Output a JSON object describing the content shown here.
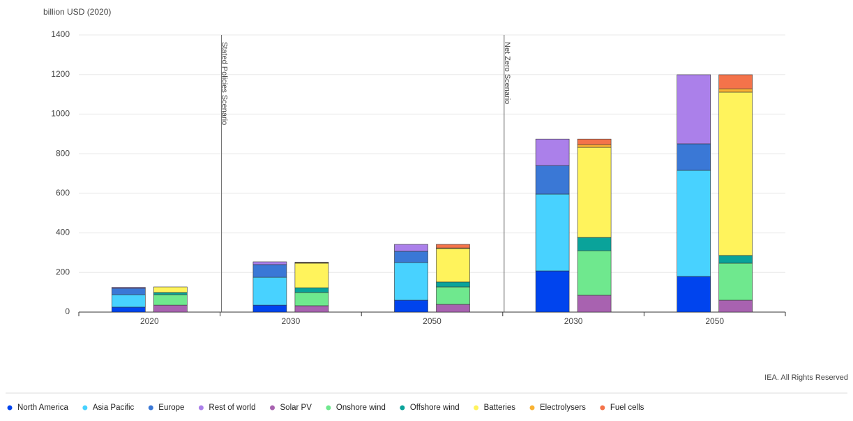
{
  "chart_data": {
    "type": "stacked-bar",
    "y_label": "billion USD (2020)",
    "source": "IEA. All Rights Reserved",
    "categories": [
      "2020",
      "2030",
      "2050",
      "2030",
      "2050"
    ],
    "annotations": [
      {
        "text": "Stated Policies Scenario",
        "category": 1
      },
      {
        "text": "Net Zero Scenario",
        "category": 3
      }
    ],
    "ylim": [
      0,
      1400
    ],
    "yticks": [
      0,
      200,
      400,
      600,
      800,
      1000,
      1200,
      1400
    ],
    "grid": true,
    "series": [
      {
        "name": "North America",
        "color": "#0044ee",
        "stack": 0,
        "values": [
          25,
          35,
          60,
          208,
          180
        ]
      },
      {
        "name": "Asia Pacific",
        "color": "#48d2ff",
        "stack": 0,
        "values": [
          63,
          141,
          190,
          388,
          536
        ]
      },
      {
        "name": "Europe",
        "color": "#3a78d6",
        "stack": 0,
        "values": [
          32,
          64,
          57,
          144,
          134
        ]
      },
      {
        "name": "Rest of world",
        "color": "#ab80ea",
        "stack": 0,
        "values": [
          5,
          14,
          35,
          134,
          349
        ]
      },
      {
        "name": "Solar PV",
        "color": "#a862b0",
        "stack": 1,
        "values": [
          35,
          32,
          39,
          85,
          60
        ]
      },
      {
        "name": "Onshore wind",
        "color": "#6fe88e",
        "stack": 1,
        "values": [
          53,
          67,
          88,
          225,
          187
        ]
      },
      {
        "name": "Offshore wind",
        "color": "#0aa39a",
        "stack": 1,
        "values": [
          11,
          24,
          25,
          67,
          39
        ]
      },
      {
        "name": "Batteries",
        "color": "#fff35c",
        "stack": 1,
        "values": [
          28,
          124,
          169,
          455,
          825
        ]
      },
      {
        "name": "Electrolysers",
        "color": "#f9b233",
        "stack": 1,
        "values": [
          0,
          3,
          3,
          14,
          17
        ]
      },
      {
        "name": "Fuel cells",
        "color": "#f4734a",
        "stack": 1,
        "values": [
          0,
          2,
          18,
          28,
          71
        ]
      }
    ]
  }
}
